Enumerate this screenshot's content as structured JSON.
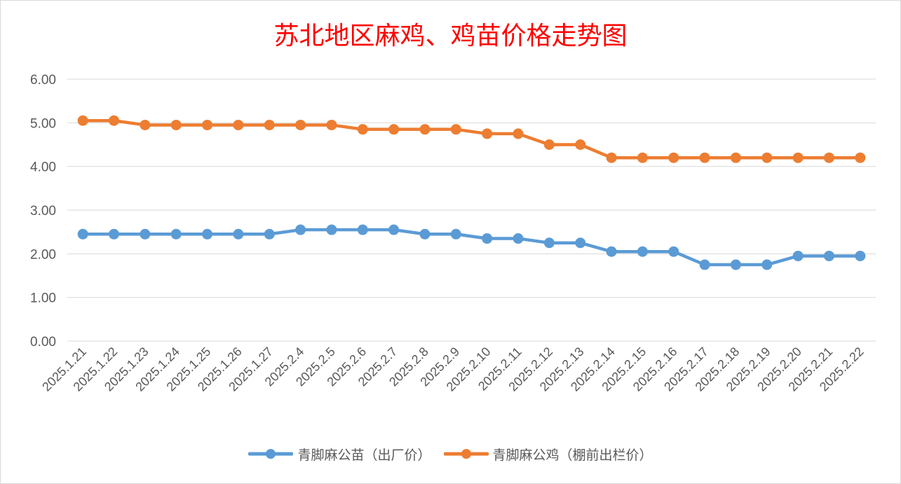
{
  "chart_data": {
    "type": "line",
    "title": "苏北地区麻鸡、鸡苗价格走势图",
    "xlabel": "",
    "ylabel": "",
    "ylim": [
      0,
      6
    ],
    "yticks": [
      "0.00",
      "1.00",
      "2.00",
      "3.00",
      "4.00",
      "5.00",
      "6.00"
    ],
    "grid": true,
    "legend_position": "bottom",
    "categories": [
      "2025.1.21",
      "2025.1.22",
      "2025.1.23",
      "2025.1.24",
      "2025.1.25",
      "2025.1.26",
      "2025.1.27",
      "2025.2.4",
      "2025.2.5",
      "2025.2.6",
      "2025.2.7",
      "2025.2.8",
      "2025.2.9",
      "2025.2.10",
      "2025.2.11",
      "2025.2.12",
      "2025.2.13",
      "2025.2.14",
      "2025.2.15",
      "2025.2.16",
      "2025.2.17",
      "2025.2.18",
      "2025.2.19",
      "2025.2.20",
      "2025.2.21",
      "2025.2.22"
    ],
    "series": [
      {
        "name": "青脚麻公苗（出厂价）",
        "color": "#5b9bd5",
        "values": [
          2.45,
          2.45,
          2.45,
          2.45,
          2.45,
          2.45,
          2.45,
          2.55,
          2.55,
          2.55,
          2.55,
          2.45,
          2.45,
          2.35,
          2.35,
          2.25,
          2.25,
          2.05,
          2.05,
          2.05,
          1.75,
          1.75,
          1.75,
          1.95,
          1.95,
          1.95
        ]
      },
      {
        "name": "青脚麻公鸡（棚前出栏价）",
        "color": "#ed7d31",
        "values": [
          5.05,
          5.05,
          4.95,
          4.95,
          4.95,
          4.95,
          4.95,
          4.95,
          4.95,
          4.85,
          4.85,
          4.85,
          4.85,
          4.75,
          4.75,
          4.5,
          4.5,
          4.2,
          4.2,
          4.2,
          4.2,
          4.2,
          4.2,
          4.2,
          4.2,
          4.2
        ]
      }
    ]
  }
}
